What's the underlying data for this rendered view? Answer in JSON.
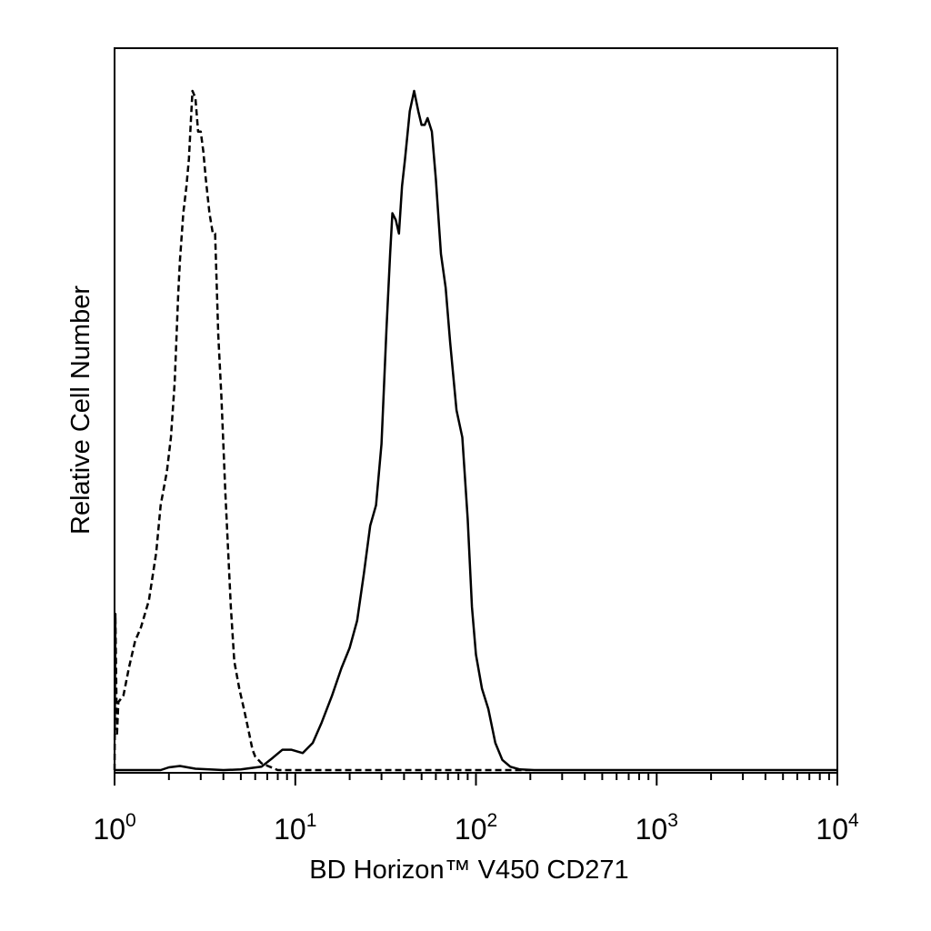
{
  "chart_data": {
    "type": "line",
    "title": "",
    "xlabel": "BD Horizon™ V450 CD271",
    "ylabel": "Relative Cell Number",
    "x_scale": "log",
    "xlim": [
      1,
      10000
    ],
    "ylim": [
      0,
      100
    ],
    "grid": false,
    "legend": "none",
    "x_ticks": [
      {
        "base": "10",
        "exp": "0",
        "value": 1
      },
      {
        "base": "10",
        "exp": "1",
        "value": 10
      },
      {
        "base": "10",
        "exp": "2",
        "value": 100
      },
      {
        "base": "10",
        "exp": "3",
        "value": 1000
      },
      {
        "base": "10",
        "exp": "4",
        "value": 10000
      }
    ],
    "series": [
      {
        "style": "dashed",
        "color": "#000000",
        "points": [
          [
            1.0,
            0
          ],
          [
            1.01,
            23
          ],
          [
            1.03,
            5
          ],
          [
            1.05,
            10
          ],
          [
            1.12,
            11
          ],
          [
            1.2,
            15
          ],
          [
            1.3,
            19
          ],
          [
            1.4,
            21
          ],
          [
            1.55,
            25
          ],
          [
            1.7,
            32
          ],
          [
            1.8,
            39
          ],
          [
            1.95,
            44
          ],
          [
            2.05,
            49
          ],
          [
            2.15,
            57
          ],
          [
            2.25,
            70
          ],
          [
            2.3,
            75
          ],
          [
            2.4,
            82
          ],
          [
            2.5,
            86
          ],
          [
            2.58,
            90
          ],
          [
            2.65,
            96
          ],
          [
            2.7,
            100
          ],
          [
            2.8,
            99
          ],
          [
            2.9,
            94
          ],
          [
            3.0,
            94
          ],
          [
            3.1,
            91
          ],
          [
            3.2,
            87
          ],
          [
            3.35,
            82
          ],
          [
            3.5,
            79
          ],
          [
            3.6,
            79
          ],
          [
            3.75,
            64
          ],
          [
            3.9,
            55
          ],
          [
            4.1,
            41
          ],
          [
            4.4,
            24
          ],
          [
            4.6,
            16
          ],
          [
            4.9,
            12
          ],
          [
            5.2,
            9
          ],
          [
            5.5,
            6
          ],
          [
            5.8,
            3
          ],
          [
            6.0,
            2
          ],
          [
            6.5,
            1
          ],
          [
            8.0,
            0
          ],
          [
            20,
            0
          ],
          [
            200,
            0
          ]
        ]
      },
      {
        "style": "solid",
        "color": "#000000",
        "points": [
          [
            1.0,
            0
          ],
          [
            1.8,
            0
          ],
          [
            2.0,
            0.4
          ],
          [
            2.3,
            0.6
          ],
          [
            2.8,
            0.2
          ],
          [
            4.0,
            0
          ],
          [
            5.0,
            0.1
          ],
          [
            6.5,
            0.5
          ],
          [
            7.5,
            1.8
          ],
          [
            8.5,
            3
          ],
          [
            9.5,
            3
          ],
          [
            11,
            2.5
          ],
          [
            12.5,
            4
          ],
          [
            14,
            7
          ],
          [
            16,
            11
          ],
          [
            18,
            15
          ],
          [
            20,
            18
          ],
          [
            22,
            22
          ],
          [
            24,
            29
          ],
          [
            26,
            36
          ],
          [
            28,
            39
          ],
          [
            30,
            48
          ],
          [
            32,
            65
          ],
          [
            33.5,
            76
          ],
          [
            34.5,
            82
          ],
          [
            36,
            81
          ],
          [
            37.5,
            79
          ],
          [
            39,
            86
          ],
          [
            40.5,
            90
          ],
          [
            43,
            97
          ],
          [
            45.5,
            100
          ],
          [
            48,
            97
          ],
          [
            50,
            95
          ],
          [
            52,
            95
          ],
          [
            54,
            96
          ],
          [
            57,
            94
          ],
          [
            60,
            87
          ],
          [
            64,
            76
          ],
          [
            68,
            71
          ],
          [
            72,
            63
          ],
          [
            78,
            53
          ],
          [
            84,
            49
          ],
          [
            90,
            37
          ],
          [
            95,
            24
          ],
          [
            100,
            17
          ],
          [
            108,
            12
          ],
          [
            117,
            9
          ],
          [
            128,
            4
          ],
          [
            140,
            1.5
          ],
          [
            155,
            0.5
          ],
          [
            175,
            0.1
          ],
          [
            210,
            0
          ],
          [
            10000,
            0
          ]
        ]
      }
    ]
  }
}
